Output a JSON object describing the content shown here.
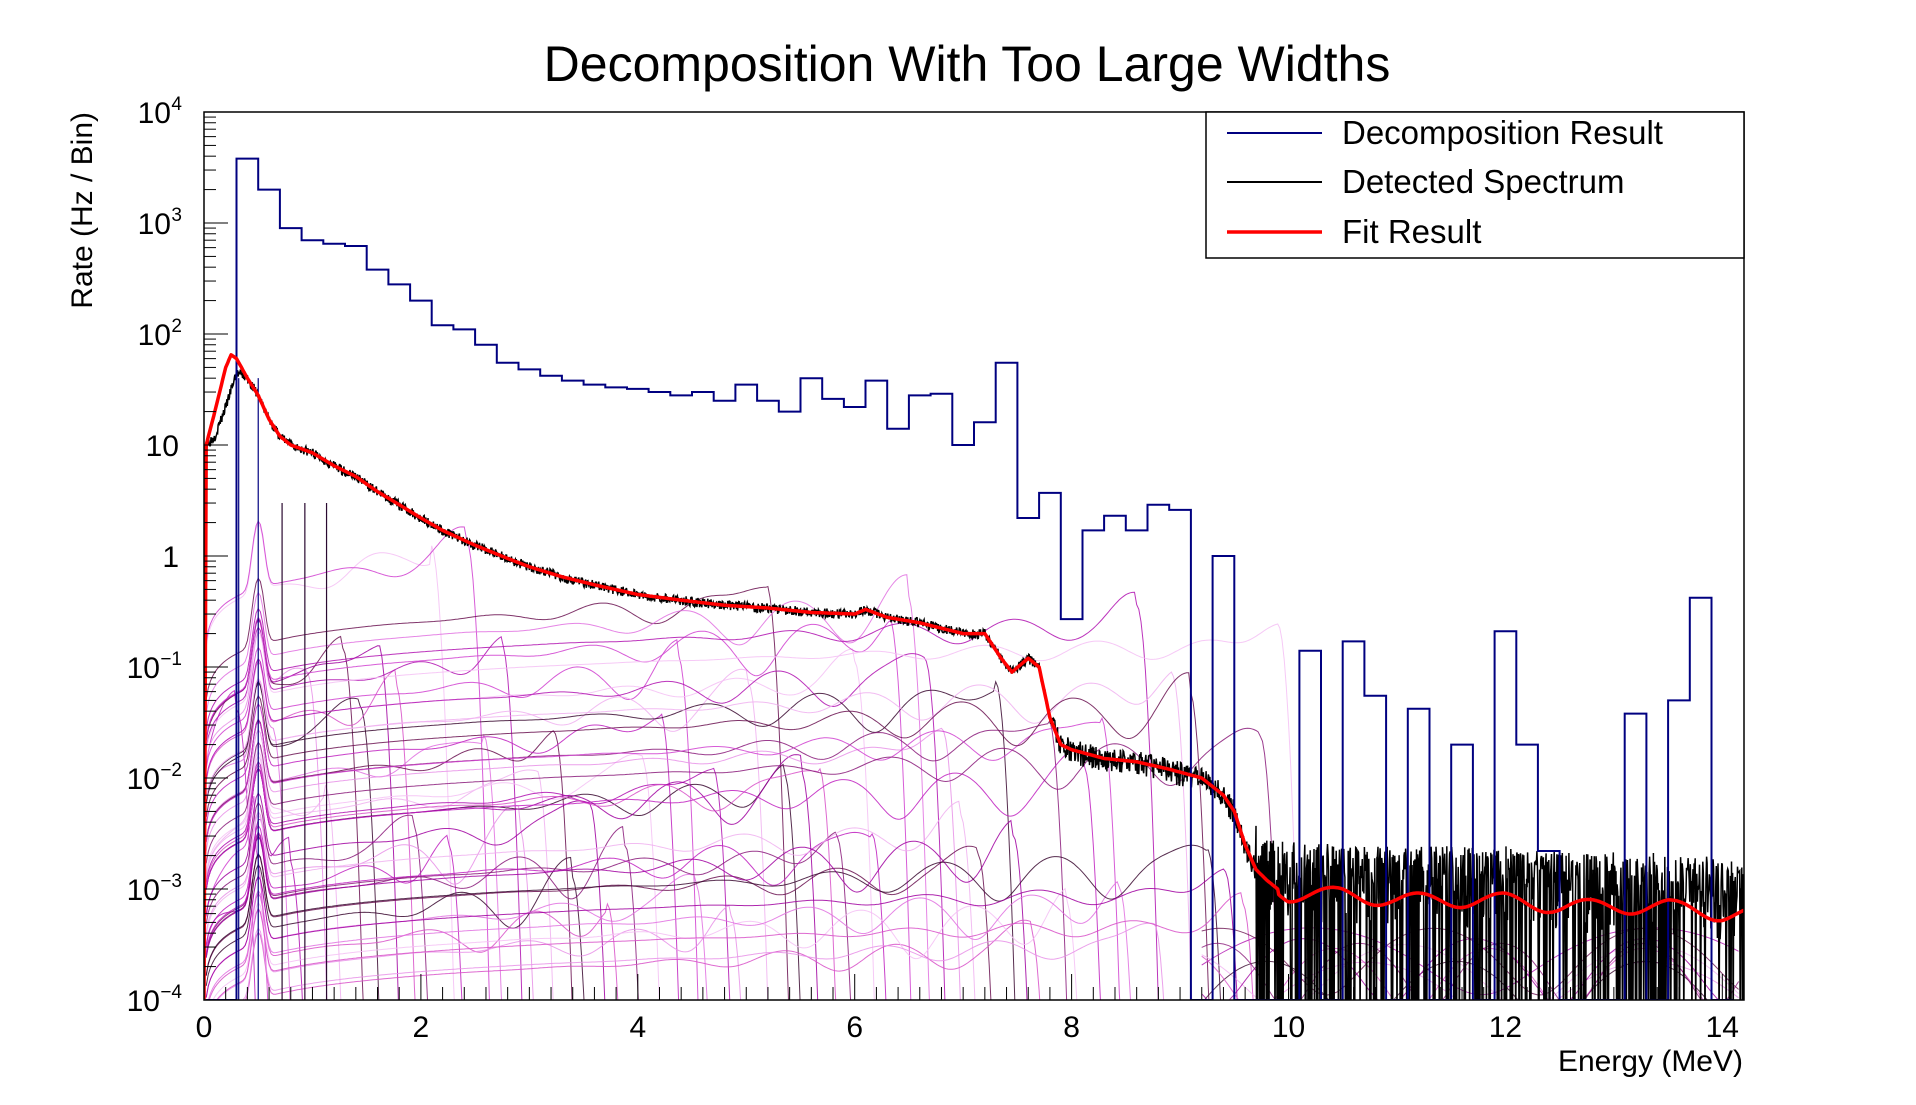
{
  "chart_data": {
    "type": "line",
    "title": "Decomposition With Too Large Widths",
    "xlabel": "Energy (MeV)",
    "ylabel": "Rate (Hz / Bin)",
    "xlim": [
      0,
      14.2
    ],
    "ylim": [
      0.0001,
      10000
    ],
    "yscale": "log",
    "grid": false,
    "legend_position": "top-right",
    "x_ticks": [
      {
        "value": 0,
        "label": "0"
      },
      {
        "value": 2,
        "label": "2"
      },
      {
        "value": 4,
        "label": "4"
      },
      {
        "value": 6,
        "label": "6"
      },
      {
        "value": 8,
        "label": "8"
      },
      {
        "value": 10,
        "label": "10"
      },
      {
        "value": 12,
        "label": "12"
      },
      {
        "value": 14,
        "label": "14"
      }
    ],
    "y_ticks": [
      {
        "value": 0.0001,
        "base": "10",
        "exp": "−4",
        "label": ""
      },
      {
        "value": 0.001,
        "base": "10",
        "exp": "−3",
        "label": ""
      },
      {
        "value": 0.01,
        "base": "10",
        "exp": "−2",
        "label": ""
      },
      {
        "value": 0.1,
        "base": "10",
        "exp": "−1",
        "label": ""
      },
      {
        "value": 1,
        "base": "",
        "exp": "",
        "label": "1"
      },
      {
        "value": 10,
        "base": "",
        "exp": "",
        "label": "10"
      },
      {
        "value": 100,
        "base": "10",
        "exp": "2",
        "label": ""
      },
      {
        "value": 1000,
        "base": "10",
        "exp": "3",
        "label": ""
      },
      {
        "value": 10000,
        "base": "10",
        "exp": "4",
        "label": ""
      }
    ],
    "series": [
      {
        "name": "Decomposition Result",
        "color": "#000080",
        "style": "step",
        "bin_edges": [
          0,
          0.3,
          0.5,
          0.7,
          0.9,
          1.1,
          1.3,
          1.5,
          1.7,
          1.9,
          2.1,
          2.3,
          2.5,
          2.7,
          2.9,
          3.1,
          3.3,
          3.5,
          3.7,
          3.9,
          4.1,
          4.3,
          4.5,
          4.7,
          4.9,
          5.1,
          5.3,
          5.5,
          5.7,
          5.9,
          6.1,
          6.3,
          6.5,
          6.7,
          6.9,
          7.1,
          7.3,
          7.5,
          7.7,
          7.9,
          8.1,
          8.3,
          8.5,
          8.7,
          8.9,
          9.1,
          9.3,
          9.5,
          9.7,
          9.9,
          10.1,
          10.3,
          10.5,
          10.7,
          10.9,
          11.1,
          11.3,
          11.5,
          11.7,
          11.9,
          12.1,
          12.3,
          12.5,
          12.7,
          12.9,
          13.1,
          13.3,
          13.5,
          13.7,
          13.9,
          14.1
        ],
        "values": [
          0.0001,
          3800,
          2000,
          900,
          700,
          650,
          620,
          380,
          280,
          200,
          120,
          110,
          80,
          55,
          48,
          42,
          38,
          35,
          33,
          32,
          30,
          28,
          30,
          25,
          35,
          25,
          20,
          40,
          26,
          22,
          38,
          14,
          28,
          29,
          10,
          16,
          55,
          2.2,
          3.7,
          0.27,
          1.7,
          2.3,
          1.7,
          2.9,
          2.6,
          0.0001,
          1.0,
          0.0001,
          0.0001,
          0.0001,
          0.14,
          0.0001,
          0.17,
          0.055,
          0.0001,
          0.042,
          0.0001,
          0.02,
          0.0001,
          0.21,
          0.02,
          0.0022,
          0.0001,
          0.0001,
          0.0001,
          0.038,
          0.0001,
          0.05,
          0.42,
          0.0001
        ]
      },
      {
        "name": "Detected Spectrum",
        "color": "#000000",
        "style": "noisy-line",
        "x": [
          0.02,
          0.1,
          0.2,
          0.3,
          0.4,
          0.5,
          0.6,
          0.7,
          0.8,
          1.0,
          1.2,
          1.4,
          1.6,
          1.8,
          2.0,
          2.2,
          2.5,
          2.8,
          3.0,
          3.3,
          3.6,
          4.0,
          4.4,
          4.8,
          5.2,
          5.6,
          6.0,
          6.1,
          6.3,
          6.6,
          7.0,
          7.2,
          7.35,
          7.45,
          7.6,
          7.7,
          7.8,
          7.9,
          8.0,
          8.3,
          8.6,
          8.9,
          9.2,
          9.4,
          9.5,
          9.6,
          9.7,
          9.8,
          9.9,
          10.2,
          10.5,
          11.0,
          11.5,
          12.0,
          12.5,
          13.0,
          13.5,
          14.0,
          14.2
        ],
        "y": [
          10,
          12,
          22,
          45,
          40,
          28,
          17,
          12,
          10,
          8.5,
          6.5,
          5.2,
          3.8,
          2.9,
          2.2,
          1.7,
          1.25,
          0.95,
          0.8,
          0.65,
          0.55,
          0.45,
          0.4,
          0.36,
          0.34,
          0.31,
          0.3,
          0.33,
          0.28,
          0.25,
          0.2,
          0.2,
          0.12,
          0.09,
          0.12,
          0.1,
          0.035,
          0.02,
          0.018,
          0.015,
          0.014,
          0.012,
          0.01,
          0.007,
          0.005,
          0.0025,
          0.0015,
          0.0012,
          0.001,
          0.001,
          0.0009,
          0.0009,
          0.0009,
          0.0009,
          0.0008,
          0.0008,
          0.0008,
          0.0007,
          0.0007
        ]
      },
      {
        "name": "Fit Result",
        "color": "#ff0000",
        "style": "line",
        "x": [
          0.0,
          0.02,
          0.1,
          0.2,
          0.25,
          0.3,
          0.4,
          0.5,
          0.6,
          0.7,
          0.8,
          1.0,
          1.2,
          1.4,
          1.6,
          1.8,
          2.0,
          2.2,
          2.5,
          2.8,
          3.0,
          3.3,
          3.6,
          4.0,
          4.4,
          4.8,
          5.2,
          5.6,
          6.0,
          6.1,
          6.3,
          6.6,
          7.0,
          7.2,
          7.35,
          7.45,
          7.6,
          7.7,
          7.8,
          7.9,
          8.0,
          8.3,
          8.6,
          8.9,
          9.2,
          9.4,
          9.5,
          9.6,
          9.7,
          9.8,
          9.9,
          10.0,
          10.5,
          11.0,
          11.5,
          12.0,
          12.5,
          13.0,
          13.5,
          14.0,
          14.2
        ],
        "y": [
          0.0001,
          10,
          20,
          50,
          65,
          60,
          40,
          28,
          17,
          12,
          10,
          8.5,
          6.5,
          5.2,
          3.8,
          2.9,
          2.2,
          1.7,
          1.25,
          0.95,
          0.8,
          0.65,
          0.55,
          0.45,
          0.4,
          0.36,
          0.34,
          0.31,
          0.3,
          0.33,
          0.28,
          0.25,
          0.2,
          0.2,
          0.12,
          0.09,
          0.12,
          0.1,
          0.035,
          0.02,
          0.018,
          0.015,
          0.014,
          0.012,
          0.01,
          0.007,
          0.005,
          0.0025,
          0.0015,
          0.0012,
          0.001,
          0.0009,
          0.0009,
          0.0008,
          0.0008,
          0.0008,
          0.0007,
          0.0007,
          0.0007,
          0.0006,
          0.0006
        ]
      }
    ]
  }
}
